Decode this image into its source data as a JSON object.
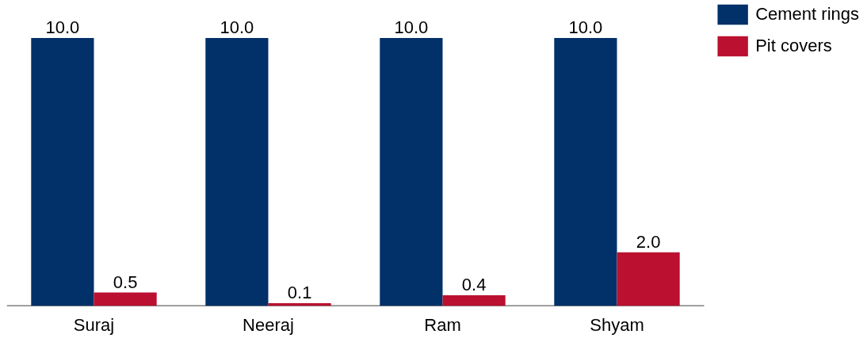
{
  "chart_data": {
    "type": "bar",
    "categories": [
      "Suraj",
      "Neeraj",
      "Ram",
      "Shyam"
    ],
    "series": [
      {
        "name": "Cement rings",
        "color": "#023068",
        "values": [
          10.0,
          10.0,
          10.0,
          10.0
        ],
        "value_labels": [
          "10.0",
          "10.0",
          "10.0",
          "10.0"
        ]
      },
      {
        "name": "Pit covers",
        "color": "#bb1030",
        "values": [
          0.5,
          0.1,
          0.4,
          2.0
        ],
        "value_labels": [
          "0.5",
          "0.1",
          "0.4",
          "2.0"
        ]
      }
    ],
    "grid": false,
    "legend": "top right",
    "tick_labels": "x"
  }
}
